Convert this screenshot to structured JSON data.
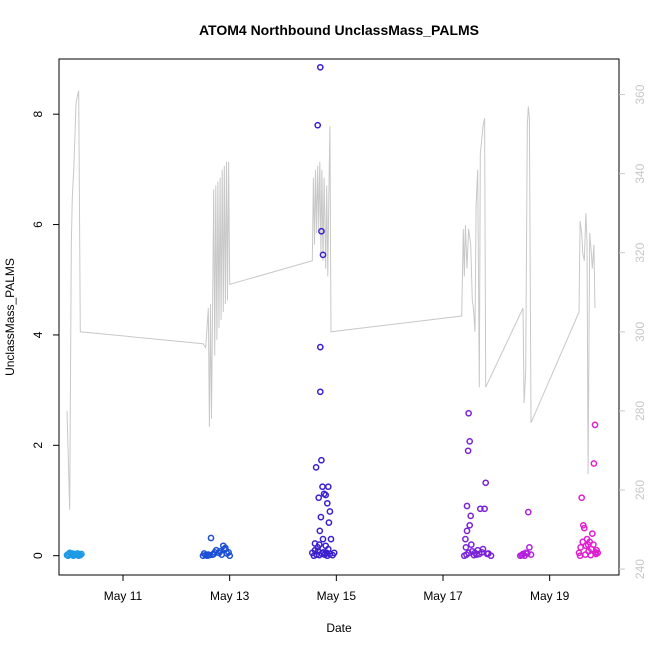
{
  "chart_data": {
    "type": "scatter",
    "title": "ATOM4 Northbound UnclassMass_PALMS",
    "xlabel": "Date",
    "ylabel": "UnclassMass_PALMS",
    "x_unit": "day of May (fractional)",
    "xlim": [
      9.8,
      20.3
    ],
    "ylim": [
      -0.35,
      9.0
    ],
    "y2lim": [
      238.5,
      369
    ],
    "x_ticks": [
      {
        "value": 11,
        "label": "May 11"
      },
      {
        "value": 13,
        "label": "May 13"
      },
      {
        "value": 15,
        "label": "May 15"
      },
      {
        "value": 17,
        "label": "May 17"
      },
      {
        "value": 19,
        "label": "May 19"
      }
    ],
    "y_ticks": [
      {
        "value": 0,
        "label": "0"
      },
      {
        "value": 2,
        "label": "2"
      },
      {
        "value": 4,
        "label": "4"
      },
      {
        "value": 6,
        "label": "6"
      },
      {
        "value": 8,
        "label": "8"
      }
    ],
    "y2_ticks": [
      {
        "value": 240,
        "label": "240"
      },
      {
        "value": 260,
        "label": "260"
      },
      {
        "value": 280,
        "label": "280"
      },
      {
        "value": 300,
        "label": "300"
      },
      {
        "value": 320,
        "label": "320"
      },
      {
        "value": 340,
        "label": "340"
      },
      {
        "value": 360,
        "label": "360"
      }
    ],
    "grid": false,
    "scatter_series": [
      {
        "color": "#1e9be6",
        "points": [
          [
            9.95,
            0.01
          ],
          [
            9.98,
            0.03
          ],
          [
            10.0,
            0.05
          ],
          [
            10.03,
            0.02
          ],
          [
            10.05,
            0.04
          ],
          [
            10.08,
            0.01
          ],
          [
            10.1,
            0.03
          ],
          [
            10.12,
            0.02
          ],
          [
            10.15,
            0.04
          ],
          [
            10.18,
            0.02
          ],
          [
            10.2,
            0.01
          ],
          [
            10.22,
            0.03
          ],
          [
            9.97,
            0.0
          ],
          [
            10.07,
            0.0
          ],
          [
            10.17,
            0.0
          ]
        ]
      },
      {
        "color": "#1a4fd6",
        "points": [
          [
            12.5,
            0.0
          ],
          [
            12.55,
            0.01
          ],
          [
            12.6,
            0.02
          ],
          [
            12.65,
            0.32
          ],
          [
            12.7,
            0.03
          ],
          [
            12.75,
            0.1
          ],
          [
            12.8,
            0.05
          ],
          [
            12.85,
            0.02
          ],
          [
            12.9,
            0.12
          ],
          [
            12.95,
            0.04
          ],
          [
            13.0,
            0.0
          ],
          [
            12.52,
            0.04
          ],
          [
            12.62,
            0.01
          ],
          [
            12.72,
            0.06
          ],
          [
            12.82,
            0.08
          ],
          [
            12.88,
            0.18
          ],
          [
            12.92,
            0.14
          ],
          [
            12.98,
            0.06
          ],
          [
            12.58,
            0.0
          ],
          [
            12.68,
            0.02
          ]
        ]
      },
      {
        "color": "#3a1fd0",
        "points": [
          [
            14.55,
            0.05
          ],
          [
            14.6,
            0.1
          ],
          [
            14.62,
            1.6
          ],
          [
            14.65,
            7.8
          ],
          [
            14.67,
            1.05
          ],
          [
            14.68,
            0.2
          ],
          [
            14.7,
            8.85
          ],
          [
            14.72,
            5.88
          ],
          [
            14.74,
            1.25
          ],
          [
            14.75,
            5.45
          ],
          [
            14.77,
            1.12
          ],
          [
            14.8,
            1.1
          ],
          [
            14.82,
            0.05
          ],
          [
            14.85,
            1.25
          ],
          [
            14.88,
            0.8
          ],
          [
            14.7,
            3.78
          ],
          [
            14.7,
            2.97
          ],
          [
            14.72,
            1.73
          ],
          [
            14.69,
            0.45
          ],
          [
            14.71,
            0.7
          ],
          [
            14.83,
            0.95
          ],
          [
            14.86,
            0.6
          ],
          [
            14.9,
            0.3
          ],
          [
            14.6,
            0.22
          ],
          [
            14.65,
            0.15
          ],
          [
            14.75,
            0.3
          ],
          [
            14.8,
            0.18
          ],
          [
            14.85,
            0.12
          ],
          [
            14.58,
            0.0
          ],
          [
            14.63,
            0.02
          ],
          [
            14.68,
            0.01
          ],
          [
            14.73,
            0.04
          ],
          [
            14.78,
            0.02
          ],
          [
            14.83,
            0.0
          ],
          [
            14.88,
            0.03
          ],
          [
            14.93,
            0.01
          ],
          [
            14.66,
            0.08
          ],
          [
            14.76,
            0.06
          ],
          [
            14.96,
            0.05
          ]
        ]
      },
      {
        "color": "#7a22d8",
        "points": [
          [
            17.4,
            0.0
          ],
          [
            17.42,
            0.3
          ],
          [
            17.45,
            0.9
          ],
          [
            17.48,
            2.58
          ],
          [
            17.5,
            0.55
          ],
          [
            17.52,
            0.72
          ],
          [
            17.45,
            0.45
          ],
          [
            17.47,
            1.9
          ],
          [
            17.5,
            2.07
          ],
          [
            17.55,
            0.08
          ],
          [
            17.6,
            0.05
          ],
          [
            17.65,
            0.1
          ],
          [
            17.7,
            0.85
          ],
          [
            17.75,
            0.12
          ],
          [
            17.78,
            0.85
          ],
          [
            17.8,
            1.32
          ],
          [
            17.85,
            0.04
          ],
          [
            17.9,
            0.0
          ],
          [
            17.43,
            0.15
          ],
          [
            17.53,
            0.2
          ],
          [
            17.63,
            0.02
          ],
          [
            17.73,
            0.06
          ],
          [
            17.83,
            0.03
          ],
          [
            17.58,
            0.01
          ],
          [
            17.68,
            0.03
          ],
          [
            17.48,
            0.05
          ],
          [
            17.44,
            0.02
          ]
        ]
      },
      {
        "color": "#b41fe0",
        "points": [
          [
            18.45,
            0.0
          ],
          [
            18.5,
            0.03
          ],
          [
            18.55,
            0.05
          ],
          [
            18.6,
            0.79
          ],
          [
            18.62,
            0.15
          ],
          [
            18.65,
            0.02
          ],
          [
            18.48,
            0.01
          ],
          [
            18.58,
            0.04
          ],
          [
            18.53,
            0.0
          ]
        ]
      },
      {
        "color": "#e01fcf",
        "points": [
          [
            19.55,
            0.05
          ],
          [
            19.6,
            1.05
          ],
          [
            19.63,
            0.55
          ],
          [
            19.65,
            0.5
          ],
          [
            19.7,
            0.3
          ],
          [
            19.72,
            0.2
          ],
          [
            19.75,
            0.25
          ],
          [
            19.8,
            0.4
          ],
          [
            19.85,
            2.37
          ],
          [
            19.83,
            1.67
          ],
          [
            19.88,
            0.1
          ],
          [
            19.9,
            0.05
          ],
          [
            19.58,
            0.15
          ],
          [
            19.62,
            0.25
          ],
          [
            19.68,
            0.18
          ],
          [
            19.73,
            0.08
          ],
          [
            19.78,
            0.12
          ],
          [
            19.82,
            0.2
          ],
          [
            19.86,
            0.06
          ],
          [
            19.57,
            0.0
          ],
          [
            19.67,
            0.02
          ],
          [
            19.77,
            0.01
          ],
          [
            19.87,
            0.03
          ]
        ]
      }
    ],
    "line_series": {
      "color": "#c8c8c8",
      "axis": "right",
      "points": [
        [
          9.95,
          280
        ],
        [
          10.0,
          255
        ],
        [
          10.03,
          322
        ],
        [
          10.05,
          334
        ],
        [
          10.08,
          342
        ],
        [
          10.1,
          350
        ],
        [
          10.12,
          358
        ],
        [
          10.15,
          360
        ],
        [
          10.17,
          361
        ],
        [
          10.2,
          300
        ],
        [
          12.5,
          297
        ],
        [
          12.55,
          296
        ],
        [
          12.6,
          306
        ],
        [
          12.62,
          276
        ],
        [
          12.64,
          307
        ],
        [
          12.66,
          278
        ],
        [
          12.68,
          306
        ],
        [
          12.7,
          336
        ],
        [
          12.72,
          294
        ],
        [
          12.74,
          337
        ],
        [
          12.76,
          298
        ],
        [
          12.78,
          338
        ],
        [
          12.8,
          301
        ],
        [
          12.82,
          339
        ],
        [
          12.84,
          303
        ],
        [
          12.86,
          341
        ],
        [
          12.88,
          305
        ],
        [
          12.9,
          342
        ],
        [
          12.92,
          307
        ],
        [
          12.94,
          343
        ],
        [
          12.96,
          308
        ],
        [
          12.98,
          343
        ],
        [
          13.0,
          312
        ],
        [
          14.55,
          318
        ],
        [
          14.57,
          339
        ],
        [
          14.59,
          322
        ],
        [
          14.61,
          341
        ],
        [
          14.63,
          325
        ],
        [
          14.65,
          342
        ],
        [
          14.67,
          326
        ],
        [
          14.69,
          343
        ],
        [
          14.71,
          320
        ],
        [
          14.73,
          341
        ],
        [
          14.75,
          318
        ],
        [
          14.77,
          339
        ],
        [
          14.8,
          316
        ],
        [
          14.82,
          337
        ],
        [
          14.84,
          314
        ],
        [
          14.86,
          335
        ],
        [
          14.88,
          352
        ],
        [
          14.9,
          300
        ],
        [
          17.35,
          304
        ],
        [
          17.38,
          326
        ],
        [
          17.4,
          314
        ],
        [
          17.42,
          327
        ],
        [
          17.45,
          316
        ],
        [
          17.48,
          326
        ],
        [
          17.5,
          324
        ],
        [
          17.52,
          322
        ],
        [
          17.55,
          308
        ],
        [
          17.57,
          306
        ],
        [
          17.6,
          300
        ],
        [
          17.62,
          332
        ],
        [
          17.65,
          341
        ],
        [
          17.68,
          286
        ],
        [
          17.7,
          345
        ],
        [
          17.73,
          349
        ],
        [
          17.75,
          352
        ],
        [
          17.78,
          354
        ],
        [
          17.8,
          286
        ],
        [
          18.5,
          306
        ],
        [
          18.52,
          282
        ],
        [
          18.55,
          290
        ],
        [
          18.58,
          352
        ],
        [
          18.6,
          357
        ],
        [
          18.62,
          354
        ],
        [
          18.65,
          277
        ],
        [
          19.55,
          305
        ],
        [
          19.57,
          328
        ],
        [
          19.6,
          325
        ],
        [
          19.62,
          320
        ],
        [
          19.65,
          318
        ],
        [
          19.68,
          330
        ],
        [
          19.7,
          323
        ],
        [
          19.72,
          264
        ],
        [
          19.75,
          325
        ],
        [
          19.78,
          320
        ],
        [
          19.8,
          316
        ],
        [
          19.83,
          322
        ],
        [
          19.85,
          306
        ]
      ]
    }
  }
}
